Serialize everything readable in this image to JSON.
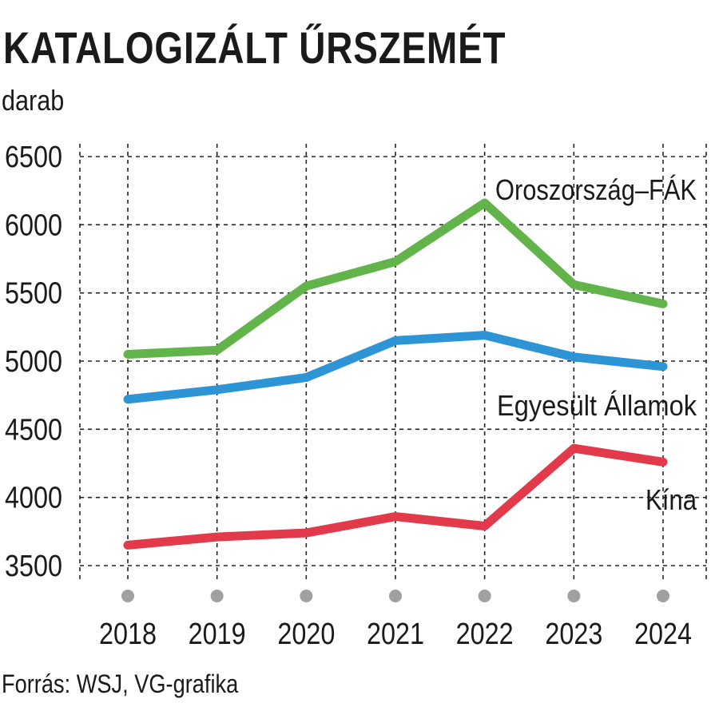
{
  "title": "KATALOGIZÁLT ŰRSZEMÉT",
  "unit": "darab",
  "source": "Forrás: WSJ, VG-grafika",
  "chart_data": {
    "type": "line",
    "x": [
      "2018",
      "2019",
      "2020",
      "2021",
      "2022",
      "2023",
      "2024"
    ],
    "yticks": [
      3500,
      4000,
      4500,
      5000,
      5500,
      6000,
      6500
    ],
    "ylim": [
      3500,
      6500
    ],
    "grid": true,
    "series": [
      {
        "name": "Oroszország–FÁK",
        "color": "#62b44a",
        "values": [
          5050,
          5080,
          5550,
          5730,
          6160,
          5560,
          5420
        ]
      },
      {
        "name": "Egyesült Államok",
        "color": "#2d94d6",
        "values": [
          4720,
          4790,
          4880,
          5150,
          5190,
          5030,
          4960
        ]
      },
      {
        "name": "Kína",
        "color": "#e23a4a",
        "values": [
          3650,
          3710,
          3740,
          3860,
          3790,
          4360,
          4260
        ]
      }
    ]
  }
}
